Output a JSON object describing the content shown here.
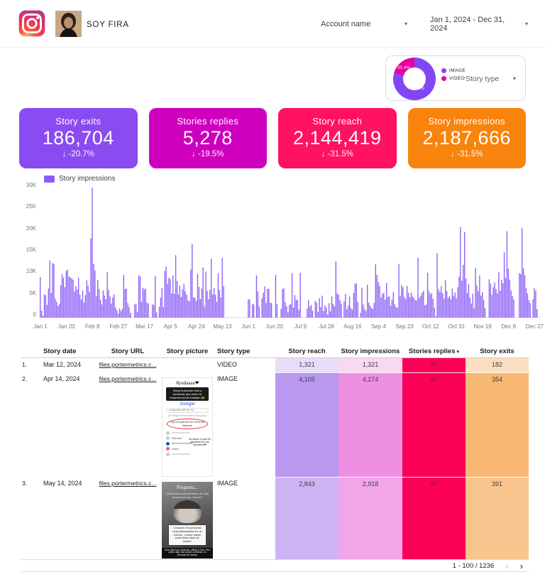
{
  "header": {
    "account_label": "SOY FIRA",
    "account_filter": "Account name",
    "date_range": "Jan 1, 2024 - Dec 31, 2024",
    "caret_icon": "▾"
  },
  "story_type_card": {
    "label": "Story type",
    "slices": [
      {
        "label": "IMAGE",
        "pct": "79.6%",
        "value": 79.6,
        "color": "#8247F5"
      },
      {
        "label": "VIDEO",
        "pct": "20.4%",
        "value": 20.4,
        "color": "#E5009F"
      }
    ]
  },
  "scorecards": [
    {
      "title": "Story exits",
      "value": "186,704",
      "arrow": "↓",
      "change": "-20.7%",
      "color": "#8A4BF0"
    },
    {
      "title": "Stories replies",
      "value": "5,278",
      "arrow": "↓",
      "change": "-19.5%",
      "color": "#CE00BE"
    },
    {
      "title": "Story reach",
      "value": "2,144,419",
      "arrow": "↓",
      "change": "-31.5%",
      "color": "#FF1164"
    },
    {
      "title": "Story impressions",
      "value": "2,187,666",
      "arrow": "↓",
      "change": "-31.5%",
      "color": "#F8830D"
    }
  ],
  "chart_data": {
    "type": "bar",
    "title": "Story impressions",
    "legend": "Story impressions",
    "bar_color": "#8B5CF6",
    "ylim": [
      0,
      30000
    ],
    "yticks": [
      "30K",
      "25K",
      "20K",
      "15K",
      "10K",
      "5K",
      "0"
    ],
    "xticks": [
      "Jan 1",
      "Jan 20",
      "Feb 8",
      "Feb 27",
      "Mar 17",
      "Apr 5",
      "Apr 24",
      "May 13",
      "Jun 1",
      "Jun 20",
      "Jul 9",
      "Jul 28",
      "Aug 16",
      "Sep 4",
      "Sep 23",
      "Oct 12",
      "Oct 31",
      "Nov 19",
      "Dec 8",
      "Dec 27"
    ],
    "xtick_day_step": 19,
    "grid": false,
    "values": [
      9200,
      1600,
      400,
      5300,
      5100,
      2900,
      6600,
      13000,
      5600,
      12400,
      12100,
      4300,
      3600,
      2600,
      3100,
      7400,
      9900,
      9100,
      6900,
      10600,
      10900,
      9300,
      9100,
      8900,
      8600,
      5900,
      7200,
      6400,
      9000,
      5200,
      4100,
      6200,
      3400,
      5100,
      8500,
      7200,
      5800,
      18000,
      29500,
      12200,
      10700,
      4900,
      8600,
      6500,
      4100,
      3000,
      6200,
      5000,
      4200,
      10300,
      6300,
      4800,
      3200,
      4600,
      5300,
      2300,
      1700,
      900,
      2100,
      1500,
      2000,
      9700,
      6500,
      6600,
      3300,
      2400,
      1100,
      0,
      0,
      3100,
      3000,
      1300,
      9600,
      9400,
      3600,
      6800,
      6400,
      6600,
      3400,
      3200,
      0,
      0,
      3000,
      2900,
      9500,
      1200,
      0,
      2500,
      4600,
      6700,
      2400,
      10600,
      11600,
      7700,
      9100,
      8800,
      5500,
      9600,
      5400,
      14200,
      8300,
      5300,
      7300,
      4700,
      6500,
      7700,
      6000,
      5200,
      3900,
      3700,
      10900,
      16700,
      4600,
      4500,
      3800,
      9900,
      7000,
      4200,
      6600,
      11400,
      2500,
      10400,
      6100,
      4200,
      6300,
      13400,
      5300,
      6700,
      5200,
      3600,
      10100,
      6300,
      4600,
      13600,
      7200,
      0,
      0,
      0,
      0,
      0,
      0,
      0,
      0,
      0,
      0,
      0,
      0,
      0,
      0,
      0,
      0,
      0,
      4200,
      4100,
      0,
      3100,
      3000,
      0,
      9600,
      6000,
      2500,
      0,
      4400,
      5700,
      7100,
      3300,
      6600,
      6500,
      3400,
      3300,
      0,
      0,
      9700,
      3100,
      0,
      0,
      2000,
      6500,
      6700,
      3500,
      2600,
      1200,
      2900,
      3100,
      10100,
      2300,
      5100,
      4100,
      4000,
      1800,
      10200,
      0,
      0,
      0,
      0,
      2100,
      4000,
      2500,
      2900,
      1600,
      0,
      3800,
      3400,
      1300,
      4400,
      2400,
      5000,
      1500,
      2800,
      2300,
      700,
      3300,
      1400,
      4800,
      3100,
      2600,
      12800,
      5500,
      5200,
      4000,
      3200,
      0,
      3700,
      5400,
      1900,
      2800,
      4800,
      2200,
      1800,
      5600,
      7700,
      7800,
      3600,
      0,
      1100,
      6800,
      3000,
      2000,
      1500,
      7500,
      3400,
      2700,
      2200,
      2000,
      3400,
      12100,
      9700,
      8100,
      7200,
      4600,
      5400,
      5600,
      4100,
      7900,
      4700,
      4900,
      2700,
      4100,
      5800,
      3100,
      2400,
      2300,
      12200,
      4900,
      7400,
      6900,
      4700,
      4200,
      7200,
      5600,
      4600,
      5700,
      4800,
      4500,
      4000,
      3900,
      13600,
      4500,
      5000,
      5700,
      6100,
      2800,
      3000,
      10200,
      6100,
      5300,
      5600,
      4300,
      2300,
      300,
      14600,
      6400,
      5800,
      7200,
      5500,
      4300,
      8500,
      6100,
      4500,
      4900,
      4200,
      6600,
      5000,
      5700,
      4400,
      6900,
      9300,
      20600,
      8400,
      12000,
      19400,
      8900,
      5600,
      7600,
      4600,
      3200,
      5400,
      2100,
      11300,
      7300,
      6000,
      9600,
      5000,
      5800,
      4000,
      2100,
      0,
      0,
      8700,
      7700,
      5200,
      6900,
      8000,
      6500,
      5500,
      10300,
      6100,
      8600,
      7800,
      14800,
      9000,
      19600,
      11100,
      8600,
      6200,
      4900,
      4100,
      0,
      0,
      0,
      10100,
      9900,
      20300,
      11200,
      9700,
      6700,
      5500,
      4000,
      3300,
      0,
      4200,
      6700,
      6100,
      1900,
      0,
      0
    ]
  },
  "table": {
    "columns": {
      "date": "Story date",
      "url": "Story URL",
      "picture": "Story picture",
      "type": "Story type",
      "reach": "Story reach",
      "impressions": "Story impressions",
      "replies": "Stories replies",
      "exits": "Story exits"
    },
    "sort_icon": "▾",
    "rows": [
      {
        "index": "1.",
        "date": "Mar 12, 2024",
        "url": "files.portermetrics.c...",
        "type": "VIDEO",
        "reach": "1,321",
        "impressions": "1,321",
        "replies": "47",
        "exits": "182",
        "colors": {
          "reach": "#E7DDF9",
          "impressions": "#F8D9F1",
          "replies": "#FA0056",
          "exits": "#FBDFC0"
        }
      },
      {
        "index": "2.",
        "date": "Apr 14, 2024",
        "url": "files.portermetrics.c...",
        "type": "IMAGE",
        "reach": "4,105",
        "impressions": "4,274",
        "replies": "47",
        "exits": "354",
        "colors": {
          "reach": "#B998F0",
          "impressions": "#EE8FE2",
          "replies": "#FA0056",
          "exits": "#F8B873"
        },
        "picture": {
          "title": "Ayudaaaa❤",
          "note": "Estoy buscando esto y personas que amen la empresa donde trabajan 🙌",
          "search_brand": "Google",
          "search_query": "companies with the be...",
          "tabs": "All   Images   News   Videos   Shopping",
          "circled_text": "Top companies for work-life balance",
          "list_items": [
            "Microsoft",
            "American Express",
            "Asana"
          ],
          "caption": "No saben lo que les agradecería y me ayudarían❤"
        }
      },
      {
        "index": "3.",
        "date": "May 14, 2024",
        "url": "files.portermetrics.c...",
        "type": "IMAGE",
        "reach": "2,843",
        "impressions": "2,918",
        "replies": "47",
        "exits": "391",
        "colors": {
          "reach": "#CDB3F4",
          "impressions": "#F2A6E7",
          "replies": "#FA0056",
          "exits": "#F9C58E"
        },
        "picture": {
          "title": "Pregunta...",
          "subtitle": "¿Cómo hacen para acordarse de todas las personas que conocen?",
          "box": "Conocen 20 personas muy interesantes en un evento, ¿cómo hacen para tener track de todas?",
          "caption": "Unos dicen que Dashami, affinity y Enlu. Pero quiero algo más people connector, no enfocado en ventas."
        }
      }
    ],
    "pagination": {
      "label": "1 - 100 / 1236",
      "prev_icon": "‹",
      "next_icon": "›"
    }
  }
}
